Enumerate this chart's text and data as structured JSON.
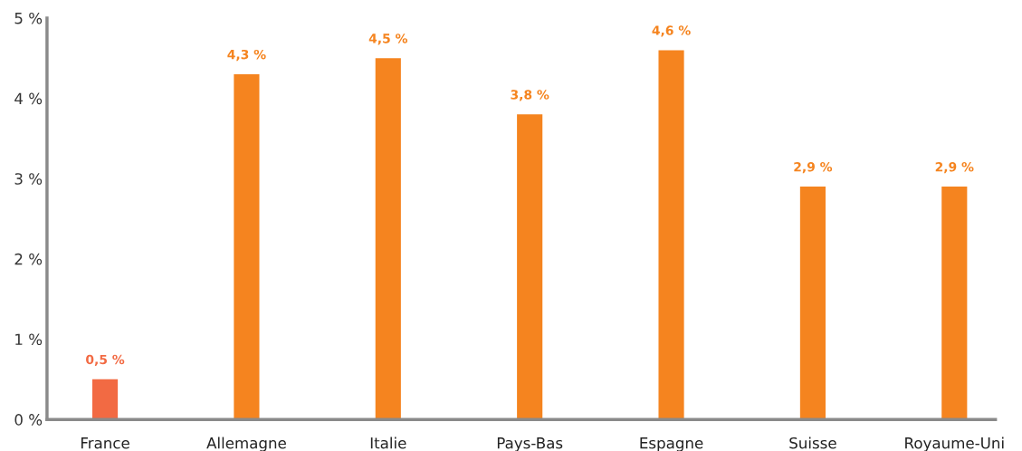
{
  "chart_data": {
    "type": "bar",
    "categories": [
      "France",
      "Allemagne",
      "Italie",
      "Pays-Bas",
      "Espagne",
      "Suisse",
      "Royaume-Uni"
    ],
    "values": [
      0.5,
      4.3,
      4.5,
      3.8,
      4.6,
      2.9,
      2.9
    ],
    "colors": [
      "#f26a43",
      "#f5841f",
      "#f5841f",
      "#f5841f",
      "#f5841f",
      "#f5841f",
      "#f5841f"
    ],
    "value_labels": [
      "0,5 %",
      "4,3 %",
      "4,5 %",
      "3,8 %",
      "4,6 %",
      "2,9 %",
      "2,9 %"
    ],
    "ylim": [
      0,
      5
    ],
    "yticks": [
      {
        "value": 0,
        "label": "0 %"
      },
      {
        "value": 1,
        "label": "1 %"
      },
      {
        "value": 2,
        "label": "2 %"
      },
      {
        "value": 3,
        "label": "3 %"
      },
      {
        "value": 4,
        "label": "4 %"
      },
      {
        "value": 5,
        "label": "5 %"
      }
    ],
    "grid": false,
    "legend": false
  }
}
